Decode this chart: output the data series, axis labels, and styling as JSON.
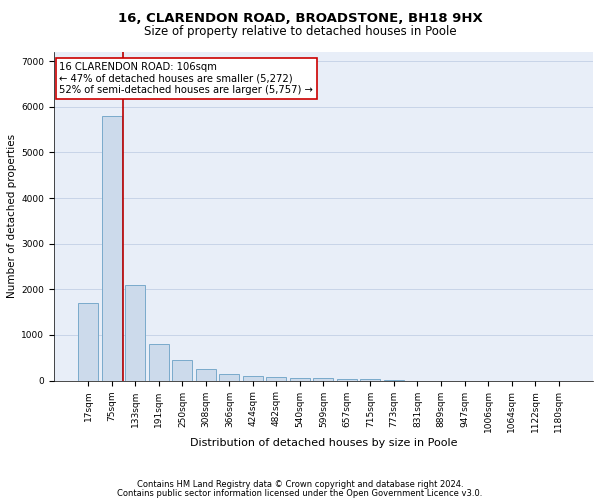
{
  "title1": "16, CLARENDON ROAD, BROADSTONE, BH18 9HX",
  "title2": "Size of property relative to detached houses in Poole",
  "xlabel": "Distribution of detached houses by size in Poole",
  "ylabel": "Number of detached properties",
  "footnote1": "Contains HM Land Registry data © Crown copyright and database right 2024.",
  "footnote2": "Contains public sector information licensed under the Open Government Licence v3.0.",
  "bin_labels": [
    "17sqm",
    "75sqm",
    "133sqm",
    "191sqm",
    "250sqm",
    "308sqm",
    "366sqm",
    "424sqm",
    "482sqm",
    "540sqm",
    "599sqm",
    "657sqm",
    "715sqm",
    "773sqm",
    "831sqm",
    "889sqm",
    "947sqm",
    "1006sqm",
    "1064sqm",
    "1122sqm",
    "1180sqm"
  ],
  "bar_values": [
    1700,
    5800,
    2100,
    800,
    450,
    250,
    150,
    100,
    80,
    60,
    50,
    40,
    30,
    5,
    3,
    2,
    1,
    1,
    1,
    1,
    0
  ],
  "bar_color": "#ccdaeb",
  "bar_edgecolor": "#7aaacb",
  "bar_linewidth": 0.7,
  "vline_x": 1.47,
  "vline_color": "#bb0000",
  "vline_linewidth": 1.2,
  "annotation_text": "16 CLARENDON ROAD: 106sqm\n← 47% of detached houses are smaller (5,272)\n52% of semi-detached houses are larger (5,757) →",
  "annotation_box_edgecolor": "#cc0000",
  "annotation_box_facecolor": "white",
  "ylim": [
    0,
    7200
  ],
  "yticks": [
    0,
    1000,
    2000,
    3000,
    4000,
    5000,
    6000,
    7000
  ],
  "grid_color": "#c8d4e8",
  "background_color": "#e8eef8",
  "plot_background": "white",
  "title1_fontsize": 9.5,
  "title2_fontsize": 8.5,
  "xlabel_fontsize": 8,
  "ylabel_fontsize": 7.5,
  "tick_fontsize": 6.5,
  "annotation_fontsize": 7.2,
  "footnote_fontsize": 6
}
